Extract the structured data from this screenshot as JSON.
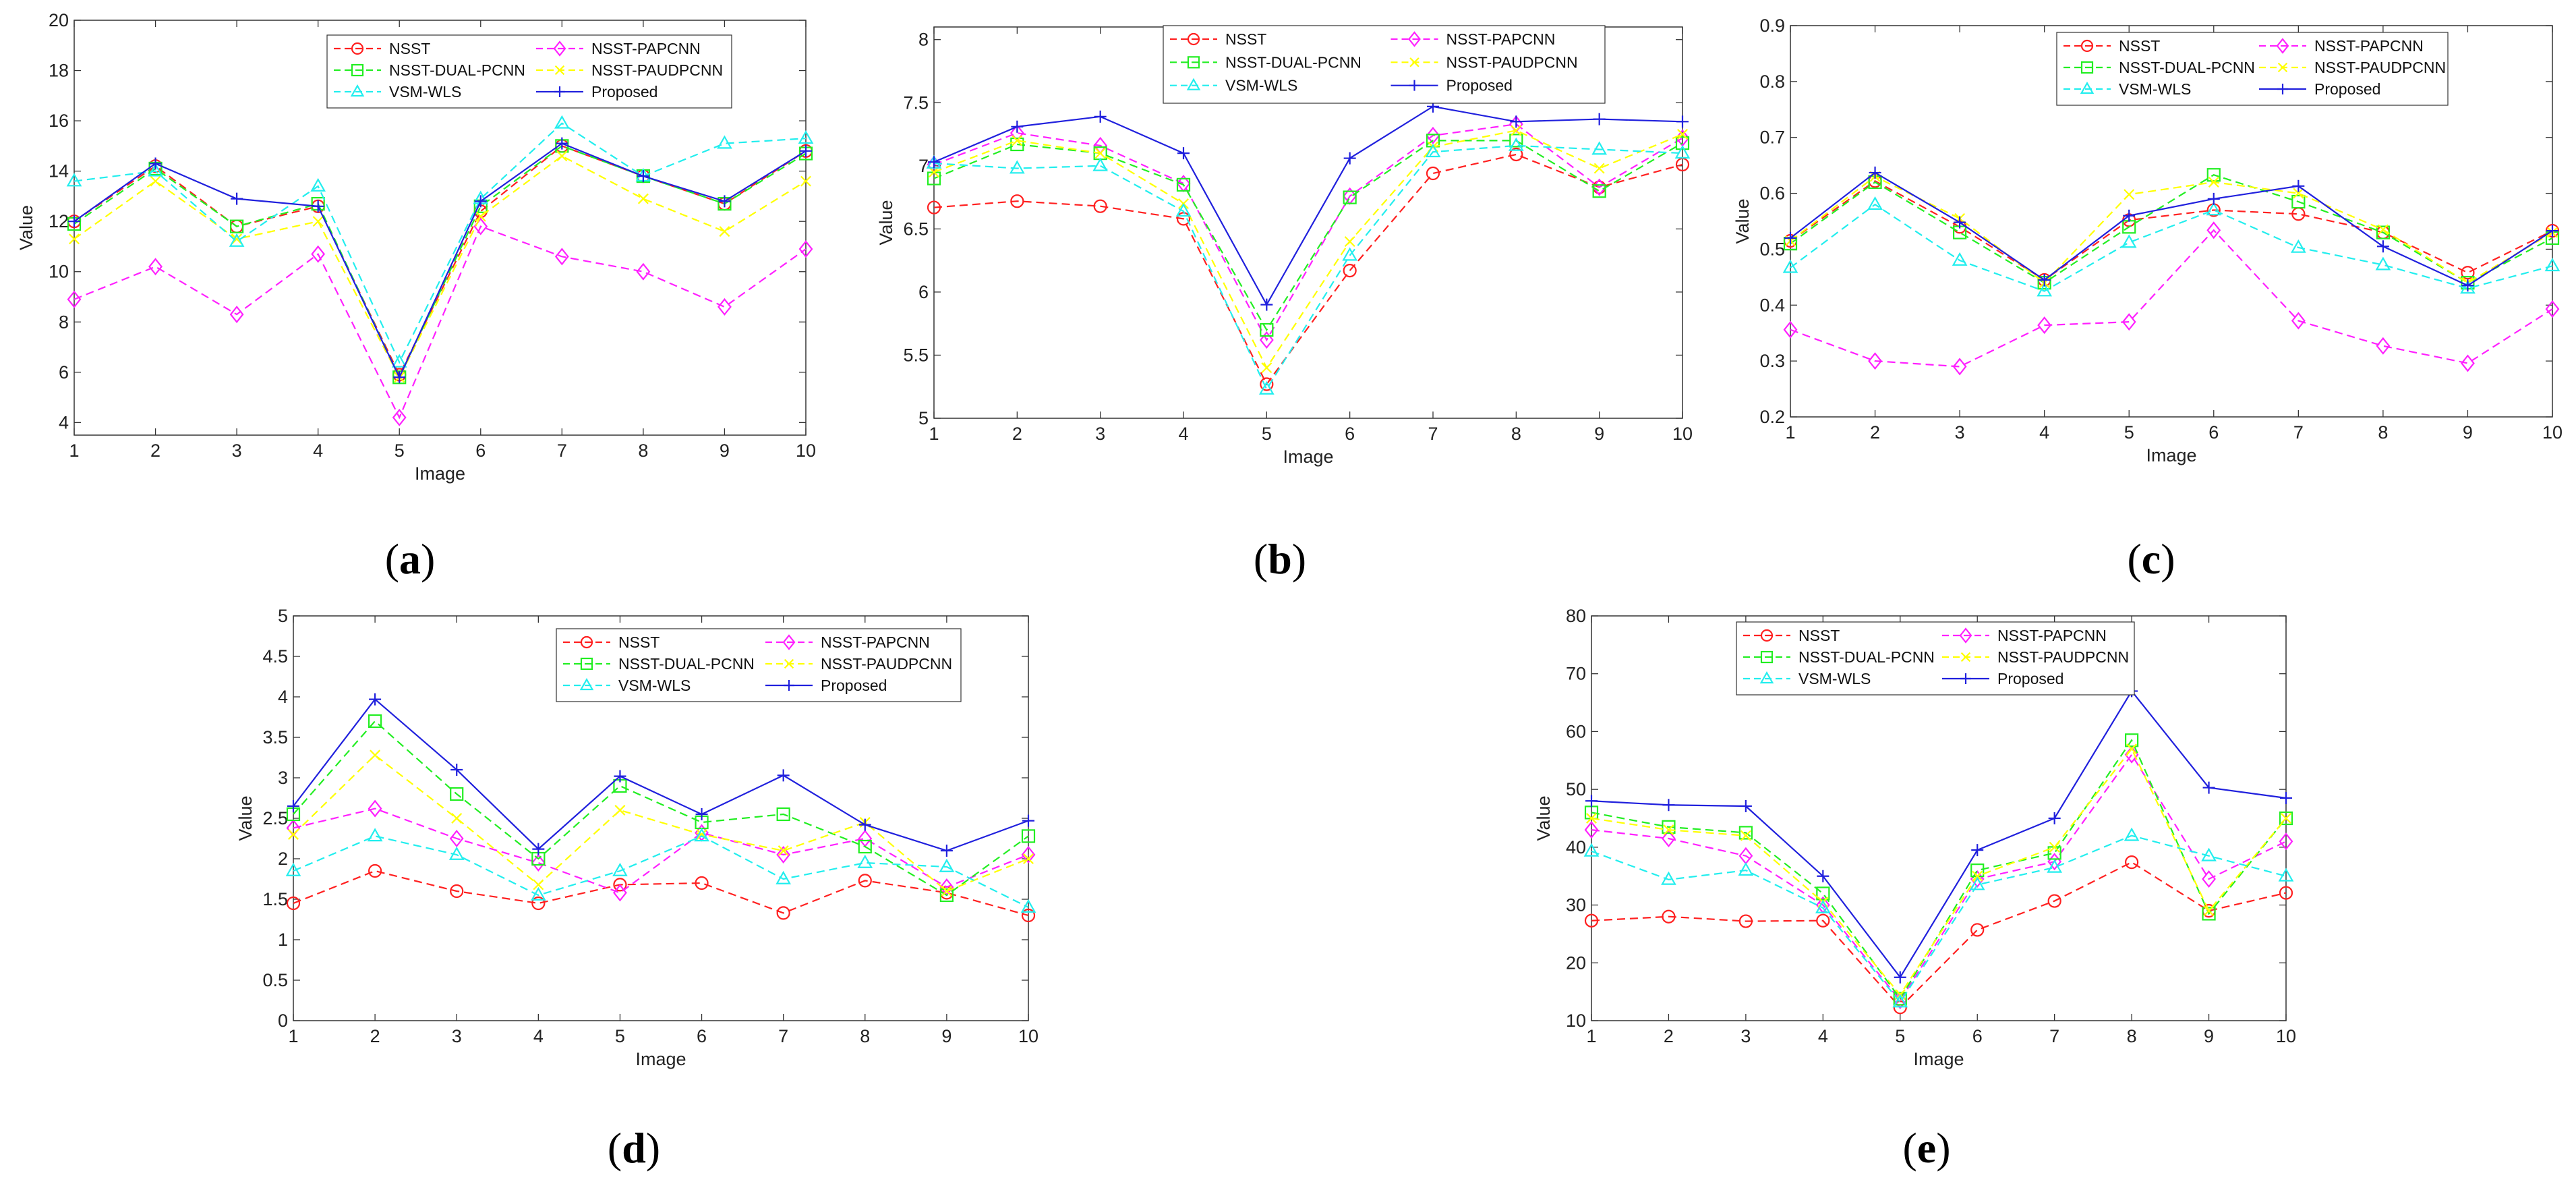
{
  "figure": {
    "panels": [
      {
        "caption_letter": "a"
      },
      {
        "caption_letter": "b"
      },
      {
        "caption_letter": "c"
      },
      {
        "caption_letter": "d"
      },
      {
        "caption_letter": "e"
      }
    ]
  },
  "legend_style": {
    "NSST": {
      "color": "#ff2020",
      "dash": "dashed",
      "marker": "circle"
    },
    "NSST-PAPCNN": {
      "color": "#ff20ff",
      "dash": "dashed",
      "marker": "diamond"
    },
    "NSST-DUAL-PCNN": {
      "color": "#22ee22",
      "dash": "dashed",
      "marker": "square"
    },
    "NSST-PAUDPCNN": {
      "color": "#ffff00",
      "dash": "dashed",
      "marker": "x"
    },
    "VSM-WLS": {
      "color": "#22eeee",
      "dash": "dashed",
      "marker": "triangle"
    },
    "Proposed": {
      "color": "#2020dd",
      "dash": "solid",
      "marker": "plus"
    }
  },
  "chart_data": [
    {
      "type": "line",
      "xlabel": "Image",
      "ylabel": "Value",
      "x": [
        1,
        2,
        3,
        4,
        5,
        6,
        7,
        8,
        9,
        10
      ],
      "xlim": [
        1,
        10
      ],
      "ylim": [
        3.5,
        20
      ],
      "yticks": [
        4,
        6,
        8,
        10,
        12,
        14,
        16,
        18,
        20
      ],
      "grid": false,
      "legend": "top-right",
      "series": [
        {
          "name": "NSST",
          "values": [
            12.0,
            14.2,
            11.8,
            12.6,
            5.9,
            12.4,
            15.0,
            13.8,
            12.7,
            14.8
          ]
        },
        {
          "name": "NSST-PAPCNN",
          "values": [
            8.9,
            10.2,
            8.3,
            10.7,
            4.2,
            11.8,
            10.6,
            10.0,
            8.6,
            10.9
          ]
        },
        {
          "name": "NSST-DUAL-PCNN",
          "values": [
            11.9,
            14.1,
            11.8,
            12.7,
            5.8,
            12.6,
            15.0,
            13.8,
            12.7,
            14.7
          ]
        },
        {
          "name": "NSST-PAUDPCNN",
          "values": [
            11.3,
            13.6,
            11.3,
            12.0,
            5.8,
            12.2,
            14.6,
            12.9,
            11.6,
            13.6
          ]
        },
        {
          "name": "VSM-WLS",
          "values": [
            13.6,
            14.0,
            11.2,
            13.4,
            6.4,
            12.9,
            15.9,
            13.8,
            15.1,
            15.3
          ]
        },
        {
          "name": "Proposed",
          "values": [
            12.0,
            14.3,
            12.9,
            12.6,
            5.8,
            12.8,
            15.1,
            13.8,
            12.8,
            14.8
          ]
        }
      ]
    },
    {
      "type": "line",
      "xlabel": "Image",
      "ylabel": "Value",
      "x": [
        1,
        2,
        3,
        4,
        5,
        6,
        7,
        8,
        9,
        10
      ],
      "xlim": [
        1,
        10
      ],
      "ylim": [
        5,
        8.1
      ],
      "yticks": [
        5,
        5.5,
        6,
        6.5,
        7,
        7.5,
        8
      ],
      "grid": false,
      "legend": "top-right",
      "series": [
        {
          "name": "NSST",
          "values": [
            6.67,
            6.72,
            6.68,
            6.58,
            5.27,
            6.17,
            6.94,
            7.09,
            6.83,
            7.01
          ]
        },
        {
          "name": "NSST-PAPCNN",
          "values": [
            7.01,
            7.26,
            7.16,
            6.86,
            5.62,
            6.76,
            7.24,
            7.33,
            6.83,
            7.22
          ]
        },
        {
          "name": "NSST-DUAL-PCNN",
          "values": [
            6.9,
            7.17,
            7.1,
            6.85,
            5.7,
            6.75,
            7.2,
            7.2,
            6.8,
            7.18
          ]
        },
        {
          "name": "NSST-PAUDPCNN",
          "values": [
            6.95,
            7.2,
            7.1,
            6.7,
            5.4,
            6.4,
            7.15,
            7.28,
            6.98,
            7.25
          ]
        },
        {
          "name": "VSM-WLS",
          "values": [
            7.02,
            6.98,
            7.0,
            6.64,
            5.23,
            6.29,
            7.11,
            7.16,
            7.13,
            7.1
          ]
        },
        {
          "name": "Proposed",
          "values": [
            7.03,
            7.31,
            7.39,
            7.1,
            5.9,
            7.06,
            7.47,
            7.35,
            7.37,
            7.35
          ]
        }
      ]
    },
    {
      "type": "line",
      "xlabel": "Image",
      "ylabel": "Value",
      "x": [
        1,
        2,
        3,
        4,
        5,
        6,
        7,
        8,
        9,
        10
      ],
      "xlim": [
        1,
        10
      ],
      "ylim": [
        0.2,
        0.9
      ],
      "yticks": [
        0.2,
        0.3,
        0.4,
        0.5,
        0.6,
        0.7,
        0.8,
        0.9
      ],
      "grid": false,
      "legend": "top-right",
      "series": [
        {
          "name": "NSST",
          "values": [
            0.515,
            0.622,
            0.54,
            0.445,
            0.552,
            0.57,
            0.563,
            0.53,
            0.458,
            0.533
          ]
        },
        {
          "name": "NSST-PAPCNN",
          "values": [
            0.356,
            0.3,
            0.29,
            0.364,
            0.37,
            0.534,
            0.372,
            0.327,
            0.296,
            0.393
          ]
        },
        {
          "name": "NSST-DUAL-PCNN",
          "values": [
            0.51,
            0.62,
            0.53,
            0.44,
            0.54,
            0.633,
            0.585,
            0.53,
            0.44,
            0.52
          ]
        },
        {
          "name": "NSST-PAUDPCNN",
          "values": [
            0.515,
            0.63,
            0.555,
            0.44,
            0.598,
            0.62,
            0.6,
            0.535,
            0.44,
            0.53
          ]
        },
        {
          "name": "VSM-WLS",
          "values": [
            0.467,
            0.58,
            0.48,
            0.425,
            0.512,
            0.57,
            0.503,
            0.472,
            0.43,
            0.47
          ]
        },
        {
          "name": "Proposed",
          "values": [
            0.52,
            0.637,
            0.548,
            0.445,
            0.56,
            0.59,
            0.613,
            0.505,
            0.435,
            0.533
          ]
        }
      ]
    },
    {
      "type": "line",
      "xlabel": "Image",
      "ylabel": "Value",
      "x": [
        1,
        2,
        3,
        4,
        5,
        6,
        7,
        8,
        9,
        10
      ],
      "xlim": [
        1,
        10
      ],
      "ylim": [
        0,
        5
      ],
      "yticks": [
        0,
        0.5,
        1,
        1.5,
        2,
        2.5,
        3,
        3.5,
        4,
        4.5,
        5
      ],
      "grid": false,
      "legend": "top-right",
      "series": [
        {
          "name": "NSST",
          "values": [
            1.45,
            1.85,
            1.6,
            1.45,
            1.68,
            1.7,
            1.33,
            1.73,
            1.58,
            1.3
          ]
        },
        {
          "name": "NSST-PAPCNN",
          "values": [
            2.38,
            2.62,
            2.25,
            1.95,
            1.58,
            2.32,
            2.05,
            2.25,
            1.65,
            2.05
          ]
        },
        {
          "name": "NSST-DUAL-PCNN",
          "values": [
            2.55,
            3.7,
            2.8,
            2.0,
            2.9,
            2.45,
            2.55,
            2.15,
            1.55,
            2.28
          ]
        },
        {
          "name": "NSST-PAUDPCNN",
          "values": [
            2.3,
            3.28,
            2.5,
            1.68,
            2.6,
            2.3,
            2.1,
            2.45,
            1.6,
            2.0
          ]
        },
        {
          "name": "VSM-WLS",
          "values": [
            1.85,
            2.28,
            2.05,
            1.55,
            1.85,
            2.28,
            1.75,
            1.95,
            1.9,
            1.4
          ]
        },
        {
          "name": "Proposed",
          "values": [
            2.65,
            3.97,
            3.1,
            2.12,
            3.02,
            2.55,
            3.03,
            2.42,
            2.1,
            2.47
          ]
        }
      ]
    },
    {
      "type": "line",
      "xlabel": "Image",
      "ylabel": "Value",
      "x": [
        1,
        2,
        3,
        4,
        5,
        6,
        7,
        8,
        9,
        10
      ],
      "xlim": [
        1,
        10
      ],
      "ylim": [
        10,
        80
      ],
      "yticks": [
        10,
        20,
        30,
        40,
        50,
        60,
        70,
        80
      ],
      "grid": false,
      "legend": "top-right",
      "series": [
        {
          "name": "NSST",
          "values": [
            27.3,
            28.0,
            27.2,
            27.3,
            12.3,
            25.7,
            30.7,
            37.4,
            29.0,
            32.1
          ]
        },
        {
          "name": "NSST-PAPCNN",
          "values": [
            43.0,
            41.5,
            38.5,
            30.0,
            13.5,
            34.5,
            37.5,
            56.0,
            34.5,
            41.0
          ]
        },
        {
          "name": "NSST-DUAL-PCNN",
          "values": [
            46.0,
            43.5,
            42.5,
            32.0,
            13.8,
            36.0,
            39.0,
            58.5,
            28.5,
            45.0
          ]
        },
        {
          "name": "NSST-PAUDPCNN",
          "values": [
            45.0,
            43.0,
            42.0,
            30.5,
            14.5,
            35.0,
            40.0,
            57.0,
            29.0,
            45.0
          ]
        },
        {
          "name": "VSM-WLS",
          "values": [
            39.3,
            34.4,
            36.0,
            29.5,
            13.2,
            33.5,
            36.5,
            42.0,
            38.5,
            35.0
          ]
        },
        {
          "name": "Proposed",
          "values": [
            48.0,
            47.3,
            47.1,
            35.0,
            17.5,
            39.5,
            45.0,
            67.0,
            50.3,
            48.5
          ]
        }
      ]
    }
  ]
}
